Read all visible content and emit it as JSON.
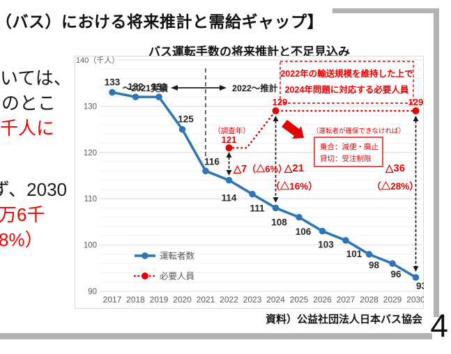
{
  "page": {
    "header_title": "（バス）における将来推計と需給ギャップ】",
    "page_number": "4",
    "source": "資料）公益社団法人日本バス協会",
    "left_fragments": [
      {
        "text": "いては、"
      },
      {
        "text": "のとこ"
      },
      {
        "text": "千人に"
      },
      {
        "text": "ず、2030"
      },
      {
        "text": "万6千"
      },
      {
        "text": "8%）"
      }
    ]
  },
  "colors": {
    "blue": "#2e75b6",
    "red": "#e60000",
    "left_text_red": "#f00000",
    "frame_gray": "#b3b3b3",
    "grid_major": "#dcdcdc",
    "grid_minor": "#f0f0f0",
    "axis_text": "#595959",
    "black_arrow": "#1a1a1a"
  },
  "chart_data": {
    "type": "line",
    "title": "バス運転手数の将来推計と不足見込み",
    "xlabel": "",
    "ylabel": "（千人）",
    "ylim": [
      90,
      140
    ],
    "y_ticks": [
      90,
      100,
      110,
      120,
      130
    ],
    "y_top_label": "140（千人）",
    "minor_grid_step": 2,
    "grid": true,
    "legend_position": "inside-lower-left",
    "x": [
      2017,
      2018,
      2019,
      2020,
      2021,
      2022,
      2023,
      2024,
      2025,
      2026,
      2027,
      2028,
      2029,
      2030
    ],
    "series": [
      {
        "name": "運転者数",
        "style": "solid",
        "values": [
          133,
          132,
          132,
          125,
          116,
          114,
          111,
          108,
          106,
          103,
          101,
          98,
          96,
          93
        ]
      },
      {
        "name": "必要人員",
        "style": "dotted",
        "values": [
          null,
          null,
          null,
          null,
          null,
          121,
          null,
          129,
          null,
          null,
          null,
          null,
          null,
          129
        ]
      }
    ],
    "annotations": {
      "period_left": "～2021実績",
      "period_right": "2022～推計",
      "survey_year_note": "（調査年）",
      "requirement_box_lines": [
        "2022年の輸送規模を維持した上で",
        "2024年問題に対応する必要人員"
      ],
      "shortage_note": "（運転者が確保できなければ）",
      "consequence_lines": [
        "乗合：減便・廃止",
        "貸切：受注制限"
      ],
      "gap_labels": [
        {
          "value": "△7",
          "pct": "（△6%）",
          "year": 2022
        },
        {
          "value": "△21",
          "pct": "（△16%）",
          "year": 2024
        },
        {
          "value": "△36",
          "pct": "（△28%）",
          "year": 2030
        }
      ]
    }
  }
}
